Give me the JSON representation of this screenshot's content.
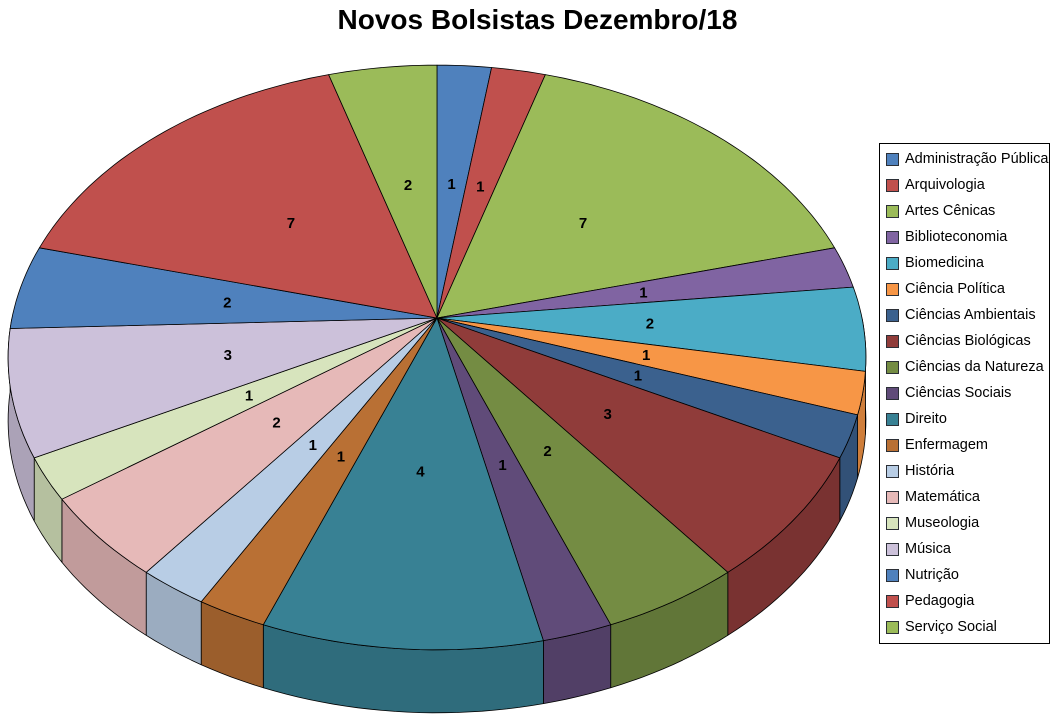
{
  "chart_data": {
    "type": "pie",
    "style": "3d-perspective",
    "title": "Novos Bolsistas Dezembro/18",
    "direction": "clockwise",
    "start_angle_deg": 0,
    "total": 43,
    "show_data_labels": true,
    "data_label_content": "value",
    "legend_position": "right",
    "categories": [
      "Administração Pública",
      "Arquivologia",
      "Artes Cênicas",
      "Biblioteconomia",
      "Biomedicina",
      "Ciência Política",
      "Ciências Ambientais",
      "Ciências Biológicas",
      "Ciências da Natureza",
      "Ciências Sociais",
      "Direito",
      "Enfermagem",
      "História",
      "Matemática",
      "Museologia",
      "Música",
      "Nutrição",
      "Pedagogia",
      "Serviço Social"
    ],
    "values": [
      1,
      1,
      7,
      1,
      2,
      1,
      1,
      3,
      2,
      1,
      4,
      1,
      1,
      2,
      1,
      3,
      2,
      7,
      2
    ],
    "colors": [
      "#4F81BD",
      "#C0504D",
      "#9BBB59",
      "#8064A2",
      "#4BACC6",
      "#F79646",
      "#3B618E",
      "#903C3A",
      "#748C43",
      "#604B79",
      "#388194",
      "#B97034",
      "#B8CDE5",
      "#E6B9B8",
      "#D7E4BD",
      "#CCC1DA",
      "#4F81BD",
      "#C0504D",
      "#9BBB59"
    ]
  }
}
